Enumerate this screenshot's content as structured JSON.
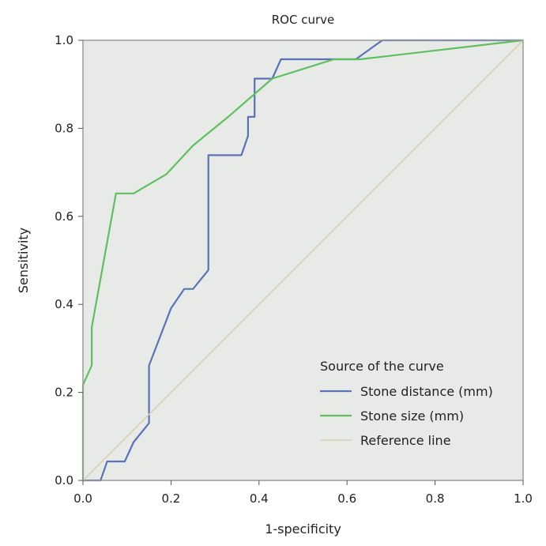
{
  "chart_data": {
    "type": "line",
    "title": "ROC curve",
    "xlabel": "1-specificity",
    "ylabel": "Sensitivity",
    "xlim": [
      0,
      1
    ],
    "ylim": [
      0,
      1
    ],
    "xticks": [
      "0.0",
      "0.2",
      "0.4",
      "0.6",
      "0.8",
      "1.0"
    ],
    "yticks": [
      "0.0",
      "0.2",
      "0.4",
      "0.6",
      "0.8",
      "1.0"
    ],
    "grid": false,
    "legend": {
      "title": "Source of the curve",
      "placement": "bottom-right"
    },
    "colors": {
      "plot_background": "#e8eae8",
      "frame": "#9a9a9a"
    },
    "series": [
      {
        "name": "Stone distance (mm)",
        "color": "#5b72b8",
        "x": [
          0.0,
          0.04,
          0.055,
          0.055,
          0.095,
          0.115,
          0.15,
          0.15,
          0.175,
          0.2,
          0.23,
          0.25,
          0.285,
          0.285,
          0.36,
          0.375,
          0.375,
          0.39,
          0.39,
          0.43,
          0.45,
          0.62,
          0.68,
          1.0
        ],
        "y": [
          0.0,
          0.0,
          0.043,
          0.043,
          0.043,
          0.087,
          0.13,
          0.261,
          0.326,
          0.391,
          0.435,
          0.435,
          0.478,
          0.739,
          0.739,
          0.783,
          0.826,
          0.826,
          0.913,
          0.913,
          0.957,
          0.957,
          1.0,
          1.0
        ]
      },
      {
        "name": "Stone size (mm)",
        "color": "#5fbf5f",
        "x": [
          0.0,
          0.0,
          0.02,
          0.02,
          0.075,
          0.115,
          0.19,
          0.25,
          0.33,
          0.43,
          0.57,
          0.63,
          1.0
        ],
        "y": [
          0.0,
          0.217,
          0.261,
          0.348,
          0.652,
          0.652,
          0.696,
          0.761,
          0.826,
          0.913,
          0.957,
          0.957,
          1.0
        ]
      },
      {
        "name": "Reference line",
        "color": "#d6cfb2",
        "x": [
          0,
          1
        ],
        "y": [
          0,
          1
        ]
      }
    ]
  }
}
